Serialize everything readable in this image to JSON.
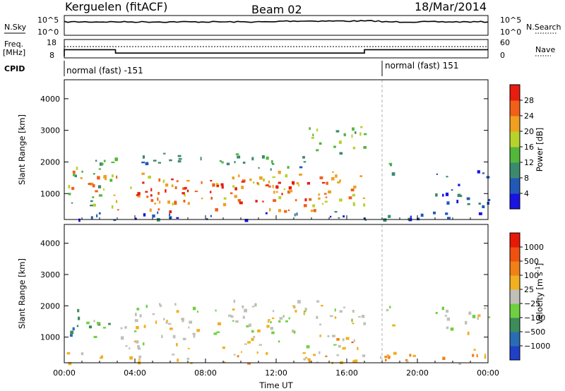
{
  "header": {
    "station": "Kerguelen (fitACF)",
    "beam": "Beam 02",
    "date": "18/Mar/2014"
  },
  "summary": {
    "nsky_label": "N.Sky",
    "nsky_ticks": [
      "10^5",
      "10^0"
    ],
    "nsearch_label": "N.Search",
    "nsearch_ticks": [
      "10^5",
      "10^0"
    ],
    "freq_label": "Freq.",
    "freq_unit": "[MHz]",
    "freq_ticks": [
      "18",
      "8"
    ],
    "nave_label": "Nave",
    "nave_ticks": [
      "60",
      "0"
    ],
    "cpid_label": "CPID",
    "modes": [
      {
        "label": "normal (fast) -151",
        "start_hour": 0,
        "end_hour": 18
      },
      {
        "label": "normal (fast) 151",
        "start_hour": 18,
        "end_hour": 24
      }
    ],
    "freq_steps": [
      {
        "start_hour": 0,
        "end_hour": 2.9,
        "mhz": 12
      },
      {
        "start_hour": 2.9,
        "end_hour": 17,
        "mhz": 10
      },
      {
        "start_hour": 17,
        "end_hour": 24,
        "mhz": 12
      }
    ]
  },
  "chart_data": [
    {
      "type": "heatmap",
      "name": "power",
      "ylabel": "Slant Range [km]",
      "xlabel": "Time UT",
      "xlim_hours": [
        0,
        24
      ],
      "ylim_km": [
        180,
        4600
      ],
      "yticks": [
        "1000",
        "2000",
        "3000",
        "4000"
      ],
      "colorbar": {
        "label": "Power [dB]",
        "ticks": [
          "4",
          "8",
          "12",
          "16",
          "20",
          "24",
          "28"
        ],
        "colors": [
          "#1a14e0",
          "#2258b8",
          "#3c8a6e",
          "#52b83a",
          "#b8d22c",
          "#f0a020",
          "#f06018",
          "#e81c10"
        ]
      },
      "regions": [
        {
          "t0": 0.0,
          "t1": 2.9,
          "r0": 600,
          "r1": 2150,
          "level": 3
        },
        {
          "t0": 0.2,
          "t1": 2.8,
          "r0": 900,
          "r1": 1800,
          "level": 5
        },
        {
          "t0": 2.9,
          "t1": 17.0,
          "r0": 650,
          "r1": 1750,
          "level": 5
        },
        {
          "t0": 4.0,
          "t1": 15.0,
          "r0": 750,
          "r1": 1500,
          "level": 7
        },
        {
          "t0": 3.0,
          "t1": 16.0,
          "r0": 400,
          "r1": 550,
          "level": 6
        },
        {
          "t0": 4.0,
          "t1": 14.5,
          "r0": 1800,
          "r1": 2300,
          "level": 2
        },
        {
          "t0": 13.5,
          "t1": 17.0,
          "r0": 2300,
          "r1": 3300,
          "level": 3
        },
        {
          "t0": 18.3,
          "t1": 18.7,
          "r0": 900,
          "r1": 2200,
          "level": 2
        },
        {
          "t0": 21.0,
          "t1": 24.0,
          "r0": 600,
          "r1": 1800,
          "level": 1
        },
        {
          "t0": 0.0,
          "t1": 24.0,
          "r0": 180,
          "r1": 450,
          "level": 1
        }
      ]
    },
    {
      "type": "heatmap",
      "name": "velocity",
      "ylabel": "Slant Range [km]",
      "xlabel": "Time UT",
      "xlim_hours": [
        0,
        24
      ],
      "ylim_km": [
        180,
        4600
      ],
      "yticks": [
        "1000",
        "2000",
        "3000",
        "4000"
      ],
      "xticks": [
        "00:00",
        "04:00",
        "08:00",
        "12:00",
        "16:00",
        "20:00",
        "00:00"
      ],
      "colorbar": {
        "label": "Velocity [m s^-1]",
        "ticks": [
          "1000",
          "500",
          "100",
          "25",
          "−25",
          "−100",
          "−500",
          "−1000"
        ],
        "colors": [
          "#2040c8",
          "#2a6cb4",
          "#3c8c5c",
          "#70d040",
          "#c0c0b8",
          "#f0b020",
          "#f08018",
          "#f05010",
          "#e81808"
        ]
      },
      "regions": [
        {
          "t0": 0.0,
          "t1": 0.9,
          "r0": 1000,
          "r1": 2100,
          "level": 2
        },
        {
          "t0": 0.9,
          "t1": 2.9,
          "r0": 900,
          "r1": 1600,
          "level": 3
        },
        {
          "t0": 2.9,
          "t1": 17.0,
          "r0": 650,
          "r1": 1800,
          "level": 4
        },
        {
          "t0": 3.5,
          "t1": 16.5,
          "r0": 1800,
          "r1": 2200,
          "level": 4
        },
        {
          "t0": 15.0,
          "t1": 16.8,
          "r0": 650,
          "r1": 1150,
          "level": 6
        },
        {
          "t0": 18.2,
          "t1": 18.8,
          "r0": 1200,
          "r1": 2000,
          "level": 4
        },
        {
          "t0": 21.0,
          "t1": 24.0,
          "r0": 1100,
          "r1": 2000,
          "level": 4
        },
        {
          "t0": 22.0,
          "t1": 24.0,
          "r0": 400,
          "r1": 700,
          "level": 5
        },
        {
          "t0": 0.0,
          "t1": 24.0,
          "r0": 180,
          "r1": 550,
          "level": 5
        }
      ]
    }
  ]
}
